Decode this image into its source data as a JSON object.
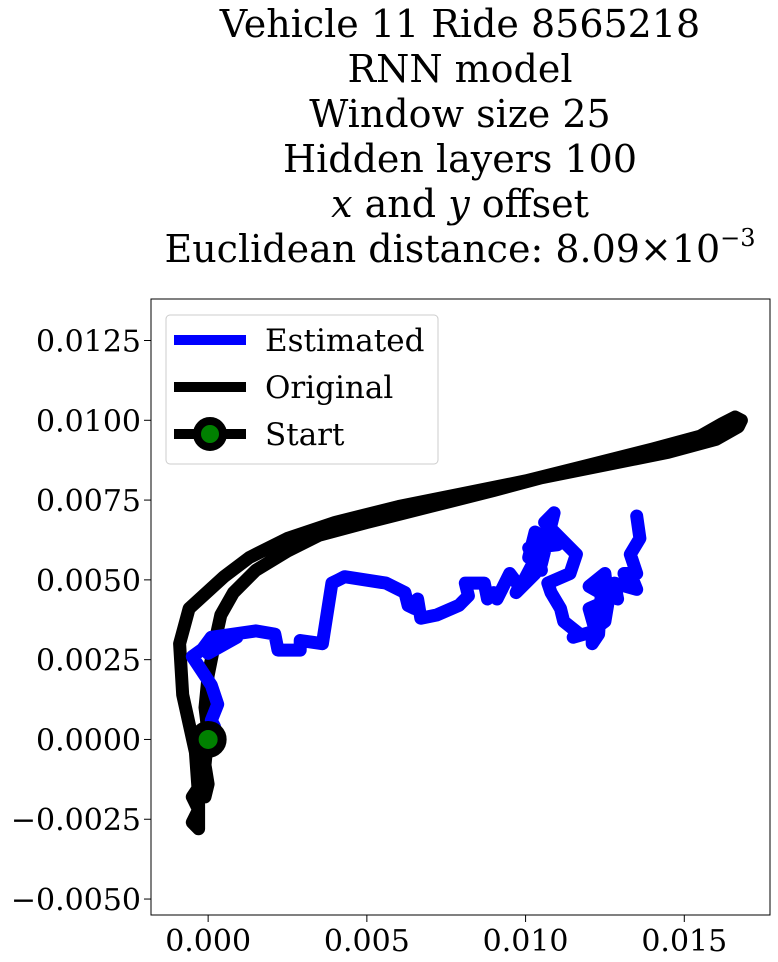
{
  "chart_data": {
    "type": "line",
    "title_lines": [
      "Vehicle 11 Ride 8565218",
      "RNN model",
      "Window size 25",
      "Hidden layers 100"
    ],
    "offset_line": {
      "var_x": "x",
      "and": " and ",
      "var_y": "y",
      "rest": " offset"
    },
    "distance_line": {
      "prefix": "Euclidean distance: ",
      "mantissa": "8.09",
      "times": "×",
      "base": "10",
      "exponent": "−3"
    },
    "xlabel": "",
    "ylabel": "",
    "xlim": [
      -0.0018,
      0.0177
    ],
    "ylim": [
      -0.0055,
      0.0138
    ],
    "xticks": [
      0.0,
      0.005,
      0.01,
      0.015
    ],
    "xtick_labels": [
      "0.000",
      "0.005",
      "0.010",
      "0.015"
    ],
    "yticks": [
      -0.005,
      -0.0025,
      0.0,
      0.0025,
      0.005,
      0.0075,
      0.01,
      0.0125
    ],
    "ytick_labels": [
      "−0.0050",
      "−0.0025",
      "0.0000",
      "0.0025",
      "0.0050",
      "0.0075",
      "0.0100",
      "0.0125"
    ],
    "grid": false,
    "legend_placement": "upper-left",
    "series": [
      {
        "name": "Estimated",
        "color": "#0000ff",
        "x": [
          0.0,
          0.0002,
          0.0001,
          0.0003,
          0.0001,
          -0.0005,
          0.0002,
          0.0009,
          0.0,
          0.0002,
          -0.0002,
          0.0001,
          0.0015,
          0.0021,
          0.0022,
          0.0029,
          0.0029,
          0.0036,
          0.0039,
          0.0041,
          0.0043,
          0.0056,
          0.0062,
          0.0063,
          0.0065,
          0.0066,
          0.0067,
          0.0072,
          0.0079,
          0.0082,
          0.0081,
          0.0087,
          0.0088,
          0.009,
          0.0091,
          0.0095,
          0.0098,
          0.0097,
          0.0103,
          0.0098,
          0.0107,
          0.0103,
          0.0105,
          0.0101,
          0.011,
          0.0103,
          0.0101,
          0.0105,
          0.0109,
          0.0106,
          0.0116,
          0.0114,
          0.0107,
          0.0108,
          0.0111,
          0.0112,
          0.0117,
          0.0115,
          0.0122,
          0.012,
          0.0127,
          0.012,
          0.0125,
          0.0126,
          0.0125,
          0.0121,
          0.0121,
          0.0123,
          0.0124,
          0.0129,
          0.0128,
          0.0135,
          0.0133,
          0.0131,
          0.0134,
          0.0135,
          0.0133,
          0.0136,
          0.0135
        ],
        "y": [
          0.0,
          0.0004,
          0.0006,
          0.0011,
          0.0017,
          0.0026,
          0.0031,
          0.0032,
          0.0027,
          0.0031,
          0.0028,
          0.0032,
          0.0034,
          0.0033,
          0.0028,
          0.0028,
          0.0031,
          0.003,
          0.0049,
          0.005,
          0.0051,
          0.0049,
          0.0046,
          0.0042,
          0.0041,
          0.0044,
          0.0038,
          0.0039,
          0.0042,
          0.0045,
          0.0049,
          0.0049,
          0.0044,
          0.0046,
          0.0044,
          0.0052,
          0.0048,
          0.0046,
          0.0052,
          0.0047,
          0.0064,
          0.0062,
          0.0053,
          0.006,
          0.0061,
          0.0065,
          0.0057,
          0.0055,
          0.0071,
          0.0068,
          0.0058,
          0.0052,
          0.0049,
          0.0046,
          0.0041,
          0.0037,
          0.0033,
          0.0032,
          0.0034,
          0.0041,
          0.0044,
          0.0048,
          0.0052,
          0.0043,
          0.0037,
          0.0034,
          0.003,
          0.0033,
          0.0048,
          0.0044,
          0.0049,
          0.0047,
          0.0052,
          0.0052,
          0.0052,
          0.0052,
          0.0058,
          0.0063,
          0.007
        ]
      },
      {
        "name": "Original",
        "color": "#000000",
        "x": [
          0.0,
          -0.0002,
          -0.0001,
          -0.0005,
          -0.0003,
          -0.0005,
          -0.0003,
          -0.0003,
          -0.0004,
          -0.0008,
          -0.0009,
          -0.0006,
          0.0005,
          0.0013,
          0.0025,
          0.004,
          0.006,
          0.008,
          0.01,
          0.012,
          0.014,
          0.0155,
          0.0162,
          0.0166,
          0.0168,
          0.0167,
          0.016,
          0.0145,
          0.0125,
          0.0105,
          0.009,
          0.007,
          0.005,
          0.0035,
          0.0025,
          0.0015,
          0.0008,
          0.0004,
          0.0002,
          0.0,
          -0.0001,
          0.0,
          -0.0001,
          0.0,
          -0.0001
        ],
        "y": [
          0.0,
          -0.0005,
          -0.0012,
          -0.0018,
          -0.0022,
          -0.0026,
          -0.0028,
          -0.0018,
          -0.0004,
          0.0014,
          0.003,
          0.0041,
          0.0051,
          0.0057,
          0.0063,
          0.0068,
          0.0073,
          0.0077,
          0.0081,
          0.0086,
          0.0091,
          0.0095,
          0.0099,
          0.0101,
          0.01,
          0.0098,
          0.0094,
          0.009,
          0.0086,
          0.0082,
          0.0078,
          0.0073,
          0.0068,
          0.0064,
          0.0059,
          0.0053,
          0.0046,
          0.0039,
          0.003,
          0.002,
          0.001,
          0.0002,
          -0.0008,
          -0.0014,
          -0.0018
        ]
      }
    ],
    "start_point": {
      "name": "Start",
      "x": 0.0,
      "y": 0.0,
      "edge_color": "#000000",
      "face_color": "#008000"
    }
  }
}
